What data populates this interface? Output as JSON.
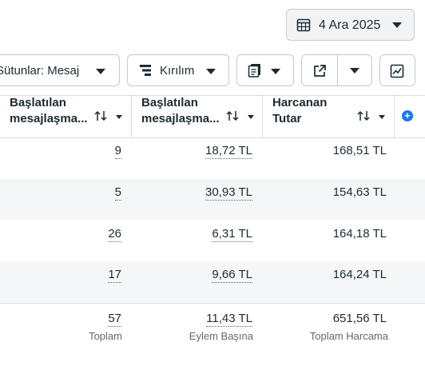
{
  "date_picker": {
    "label": "4 Ara 2025",
    "icon": "calendar-icon"
  },
  "toolbar": {
    "columns_label": "Sütunlar: Mesaj",
    "breakdown_label": "Kırılım",
    "breakdown_icon": "breakdown-icon",
    "reports_icon": "reports-icon",
    "export_icon": "export-icon",
    "chart_icon": "chart-icon"
  },
  "table": {
    "headers": [
      {
        "line1": "Başlatılan",
        "line2": "mesajlaşma..."
      },
      {
        "line1": "Başlatılan",
        "line2": "mesajlaşma..."
      },
      {
        "line1": "Harcanan",
        "line2": "Tutar"
      }
    ],
    "rows": [
      {
        "started": "9",
        "cost_per": "18,72 TL",
        "spent": "168,51 TL"
      },
      {
        "started": "5",
        "cost_per": "30,93 TL",
        "spent": "154,63 TL"
      },
      {
        "started": "26",
        "cost_per": "6,31 TL",
        "spent": "164,18 TL"
      },
      {
        "started": "17",
        "cost_per": "9,66 TL",
        "spent": "164,24 TL"
      }
    ],
    "totals": {
      "started": "57",
      "started_label": "Toplam",
      "cost_per": "11,43 TL",
      "cost_per_label": "Eylem Başına",
      "spent": "651,56 TL",
      "spent_label": "Toplam Harcama"
    }
  },
  "colors": {
    "accent": "#1877f2",
    "band": "#f5f6f7",
    "border": "#dadde1"
  }
}
